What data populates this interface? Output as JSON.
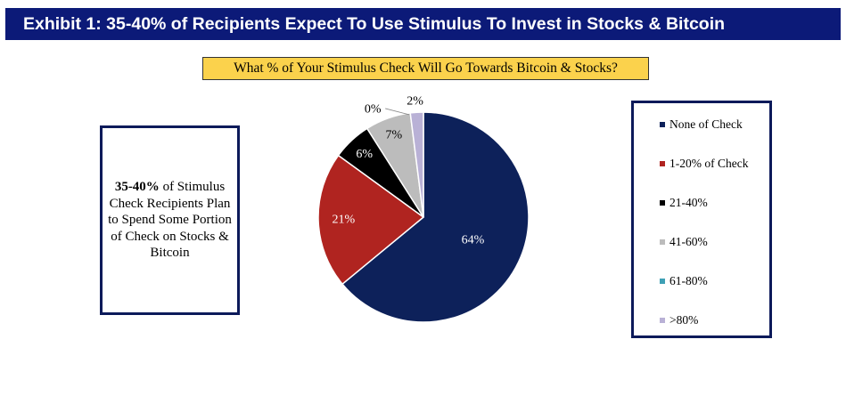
{
  "header": {
    "title": "Exhibit 1: 35-40% of Recipients Expect To Use Stimulus To Invest in Stocks & Bitcoin"
  },
  "note": {
    "bold": "35-40%",
    "rest": " of Stimulus Check Recipients Plan to Spend Some Portion of Check on Stocks & Bitcoin"
  },
  "colors": {
    "header_bg": "#0c1a78",
    "title_bg": "#fbd24c",
    "box_border": "#0c1a5a"
  },
  "chart_data": {
    "type": "pie",
    "title": "What % of Your Stimulus Check Will Go Towards Bitcoin & Stocks?",
    "start": "12 o'clock, clockwise",
    "slices": [
      {
        "label": "None of Check",
        "value": 64,
        "data_label": "64%",
        "color": "#0d215a"
      },
      {
        "label": "1-20% of Check",
        "value": 21,
        "data_label": "21%",
        "color": "#b02420"
      },
      {
        "label": "21-40%",
        "value": 6,
        "data_label": "6%",
        "color": "#000000"
      },
      {
        "label": "41-60%",
        "value": 7,
        "data_label": "7%",
        "color": "#bcbcbc"
      },
      {
        "label": "61-80%",
        "value": 0,
        "data_label": "0%",
        "color": "#3ea0b5"
      },
      {
        "label": ">80%",
        "value": 2,
        "data_label": "2%",
        "color": "#b9b1d6"
      }
    ],
    "legend_position": "right"
  }
}
